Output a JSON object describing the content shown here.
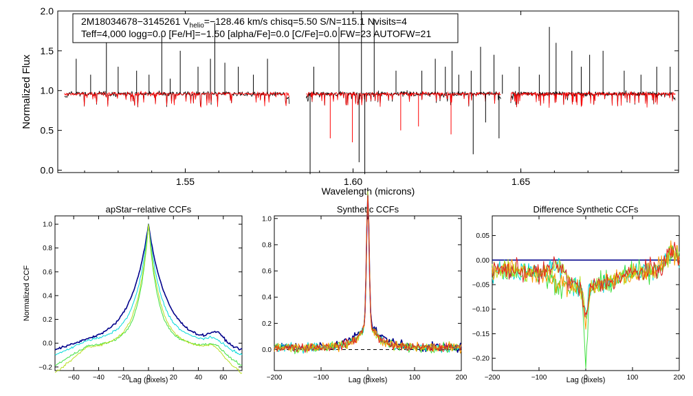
{
  "chart_data": [
    {
      "type": "line",
      "panel": "spectrum",
      "xlabel": "Wavelength (microns)",
      "ylabel": "Normalized Flux",
      "xlim": [
        1.512,
        1.697
      ],
      "ylim": [
        -0.03,
        2.0
      ],
      "xticks": [
        "1.55",
        "1.60",
        "1.65"
      ],
      "yticks": [
        "0.0",
        "0.5",
        "1.0",
        "1.5",
        "2.0"
      ],
      "info_line1": "2M18034678−3145261  V",
      "info_helio_sub": "helio",
      "info_line1b": "=−128.46 km/s  chisq=5.50  S/N=115.1  Nvisits=4",
      "info_line2": "Teff=4,000 logg=0.0 [Fe/H]=−1.50 [alpha/Fe]=0.0 [C/Fe]=0.0 FW=23 AUTOFW=21",
      "chip_ranges_microns": [
        [
          1.514,
          1.581
        ],
        [
          1.586,
          1.644
        ],
        [
          1.647,
          1.696
        ]
      ],
      "continuum_level": 0.96,
      "series": [
        {
          "name": "observed",
          "color": "#000000"
        },
        {
          "name": "synthetic",
          "color": "#ff0000"
        }
      ],
      "emission_spikes_microns": [
        1.5175,
        1.5218,
        1.5265,
        1.53,
        1.5355,
        1.5392,
        1.543,
        1.5455,
        1.5485,
        1.5538,
        1.5575,
        1.5618,
        1.5658,
        1.5703,
        1.5745,
        1.5588,
        1.5883,
        1.5958,
        1.6025,
        1.6063,
        1.6128,
        1.6205,
        1.6245,
        1.6275,
        1.6295,
        1.6315,
        1.6352,
        1.638,
        1.642,
        1.6445,
        1.6495,
        1.6555,
        1.6585,
        1.6605,
        1.6652,
        1.668,
        1.6705,
        1.6745,
        1.6808,
        1.6858,
        1.6905,
        1.6945
      ],
      "emission_spike_peaks": [
        1.4,
        1.2,
        1.6,
        1.3,
        1.25,
        1.2,
        1.7,
        1.15,
        1.5,
        1.3,
        1.4,
        1.35,
        1.3,
        1.2,
        1.4,
        1.85,
        1.3,
        1.8,
        2.0,
        1.9,
        1.25,
        1.25,
        1.4,
        1.3,
        1.5,
        1.2,
        1.25,
        1.55,
        1.45,
        1.2,
        1.3,
        1.2,
        1.8,
        1.6,
        1.5,
        1.3,
        1.45,
        1.5,
        1.25,
        1.2,
        1.3,
        1.3
      ],
      "absorption_dips_microns": [
        1.5872,
        1.6035,
        1.6018,
        1.5932,
        1.5998,
        1.6142,
        1.6195,
        1.6292,
        1.6358,
        1.6395,
        1.6435
      ],
      "absorption_dip_minima": [
        -0.05,
        -0.05,
        0.1,
        0.4,
        0.35,
        0.5,
        0.55,
        0.45,
        0.2,
        0.6,
        0.4
      ]
    },
    {
      "type": "line",
      "panel": "ccf1",
      "title": "apStar−relative CCFs",
      "xlabel": "Lag (pixels)",
      "ylabel": "Normalized CCF",
      "xlim": [
        -75,
        75
      ],
      "ylim": [
        -0.23,
        1.07
      ],
      "xticks": [
        "−60",
        "−40",
        "−20",
        "0",
        "20",
        "40",
        "60"
      ],
      "yticks": [
        "−0.2",
        "0.0",
        "0.2",
        "0.4",
        "0.6",
        "0.8",
        "1.0"
      ],
      "series": [
        {
          "name": "combined",
          "color": "#00008b",
          "width_pix": 22,
          "baseline": -0.04
        },
        {
          "name": "visit-1",
          "color": "#00d8d8",
          "width_pix": 16,
          "baseline": -0.02
        },
        {
          "name": "visit-2",
          "color": "#40e040",
          "width_pix": 12,
          "baseline": -0.05
        },
        {
          "name": "visit-3",
          "color": "#b8e020",
          "width_pix": 14,
          "baseline": -0.07
        }
      ]
    },
    {
      "type": "line",
      "panel": "ccf2",
      "title": "Synthetic CCFs",
      "xlabel": "Lag (pixels)",
      "xlim": [
        -200,
        200
      ],
      "ylim": [
        -0.16,
        1.02
      ],
      "xticks": [
        "−200",
        "−100",
        "0",
        "100",
        "200"
      ],
      "yticks": [
        "0.0",
        "0.2",
        "0.4",
        "0.6",
        "0.8",
        "1.0"
      ],
      "zero_line": 0,
      "series": [
        {
          "name": "combined",
          "color": "#00008b"
        },
        {
          "name": "visit-1",
          "color": "#00d8d8"
        },
        {
          "name": "visit-2",
          "color": "#40e040"
        },
        {
          "name": "visit-3",
          "color": "#b8e020"
        },
        {
          "name": "visit-4",
          "color": "#ff9900"
        },
        {
          "name": "visit-5",
          "color": "#e02020"
        }
      ]
    },
    {
      "type": "line",
      "panel": "ccf3",
      "title": "Difference Synthetic CCFs",
      "xlabel": "Lag (pixels)",
      "xlim": [
        -200,
        200
      ],
      "ylim": [
        -0.225,
        0.09
      ],
      "xticks": [
        "−200",
        "−100",
        "0",
        "100",
        "200"
      ],
      "yticks": [
        "0.05",
        "0.00",
        "−0.05",
        "−0.10",
        "−0.15",
        "−0.20"
      ],
      "series": [
        {
          "name": "combined",
          "color": "#00008b",
          "min": 0.0
        },
        {
          "name": "visit-1",
          "color": "#00d8d8",
          "min": -0.12
        },
        {
          "name": "visit-2",
          "color": "#40e040",
          "min": -0.21
        },
        {
          "name": "visit-3",
          "color": "#b8e020",
          "min": -0.12
        },
        {
          "name": "visit-4",
          "color": "#ff9900",
          "min": -0.13
        },
        {
          "name": "visit-5",
          "color": "#e02020",
          "min": -0.13
        }
      ]
    }
  ]
}
